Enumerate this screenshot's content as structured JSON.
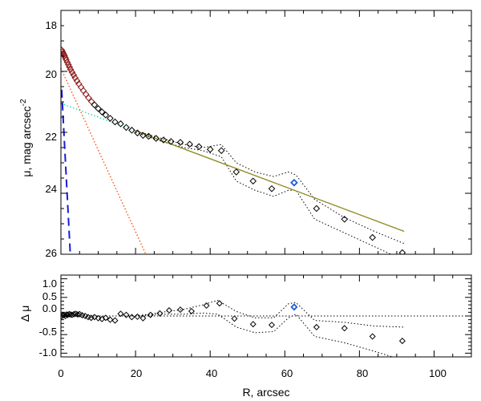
{
  "chart_data": {
    "type": "scatter",
    "xlabel": "R, arcsec",
    "xlim": [
      0,
      110
    ],
    "x_ticks": [
      "0",
      "20",
      "40",
      "60",
      "80",
      "100"
    ],
    "top_panel": {
      "ylabel_main": "μ, mag arcsec",
      "ylabel_sup": "-2",
      "ylim": [
        26,
        18
      ],
      "y_ticks": [
        "18",
        "20",
        "22",
        "24",
        "26"
      ],
      "points": [
        {
          "x": 0.2,
          "y": 19.3
        },
        {
          "x": 0.4,
          "y": 19.35
        },
        {
          "x": 0.6,
          "y": 19.4
        },
        {
          "x": 0.8,
          "y": 19.45
        },
        {
          "x": 1.0,
          "y": 19.5
        },
        {
          "x": 1.2,
          "y": 19.56
        },
        {
          "x": 1.4,
          "y": 19.62
        },
        {
          "x": 1.7,
          "y": 19.7
        },
        {
          "x": 2.0,
          "y": 19.78
        },
        {
          "x": 2.3,
          "y": 19.86
        },
        {
          "x": 2.6,
          "y": 19.94
        },
        {
          "x": 3.0,
          "y": 20.03
        },
        {
          "x": 3.4,
          "y": 20.12
        },
        {
          "x": 3.8,
          "y": 20.21
        },
        {
          "x": 4.3,
          "y": 20.31
        },
        {
          "x": 4.8,
          "y": 20.41
        },
        {
          "x": 5.4,
          "y": 20.52
        },
        {
          "x": 6.0,
          "y": 20.63
        },
        {
          "x": 6.7,
          "y": 20.75
        },
        {
          "x": 7.4,
          "y": 20.87
        },
        {
          "x": 8.2,
          "y": 20.99
        },
        {
          "x": 9.0,
          "y": 21.1
        },
        {
          "x": 10.0,
          "y": 21.22
        },
        {
          "x": 11.0,
          "y": 21.33
        },
        {
          "x": 12.0,
          "y": 21.43
        },
        {
          "x": 13.2,
          "y": 21.54
        },
        {
          "x": 14.5,
          "y": 21.66
        },
        {
          "x": 16.0,
          "y": 21.72
        },
        {
          "x": 17.5,
          "y": 21.84
        },
        {
          "x": 19.0,
          "y": 21.93
        },
        {
          "x": 20.5,
          "y": 22.02
        },
        {
          "x": 22.0,
          "y": 22.1
        },
        {
          "x": 23.5,
          "y": 22.13
        },
        {
          "x": 25.5,
          "y": 22.2
        },
        {
          "x": 27.5,
          "y": 22.25
        },
        {
          "x": 29.5,
          "y": 22.3
        },
        {
          "x": 32.0,
          "y": 22.33
        },
        {
          "x": 34.5,
          "y": 22.39
        },
        {
          "x": 37.0,
          "y": 22.47
        },
        {
          "x": 40.0,
          "y": 22.56
        },
        {
          "x": 43.0,
          "y": 22.6
        },
        {
          "x": 47.0,
          "y": 23.3
        },
        {
          "x": 51.5,
          "y": 23.6
        },
        {
          "x": 56.5,
          "y": 23.85
        },
        {
          "x": 62.5,
          "y": 23.65,
          "highlight": true
        },
        {
          "x": 68.5,
          "y": 24.5
        },
        {
          "x": 76.0,
          "y": 24.85
        },
        {
          "x": 83.5,
          "y": 25.45
        },
        {
          "x": 91.5,
          "y": 25.95
        }
      ],
      "fit_lines": [
        {
          "name": "outer disk fit",
          "style": "solid",
          "color": "#8b8b1e",
          "x": [
            20,
            92
          ],
          "y": [
            21.95,
            25.25
          ]
        },
        {
          "name": "disk extrapolation",
          "style": "dotted",
          "color": "#00e0a0",
          "x": [
            0,
            20
          ],
          "y": [
            21.05,
            21.95
          ]
        },
        {
          "name": "bulge component",
          "style": "dotted",
          "color": "#ff4500",
          "x": [
            0,
            23.5
          ],
          "y": [
            19.9,
            26.2
          ]
        },
        {
          "name": "nucleus component",
          "style": "dashed",
          "color": "#1a1ad6",
          "x": [
            0.2,
            2.6
          ],
          "y": [
            20.6,
            26.2
          ]
        }
      ],
      "envelope_upper": {
        "x": [
          20,
          27,
          33,
          38,
          43,
          47,
          52,
          57,
          61,
          63,
          68,
          76,
          84,
          92
        ],
        "y": [
          21.95,
          22.2,
          22.4,
          22.5,
          22.4,
          23.0,
          23.3,
          23.45,
          23.3,
          23.4,
          24.2,
          24.8,
          25.25,
          25.65
        ]
      },
      "envelope_lower": {
        "x": [
          20,
          27,
          33,
          38,
          43,
          47,
          52,
          57,
          61,
          63,
          68,
          76,
          84,
          92
        ],
        "y": [
          22.0,
          22.3,
          22.5,
          22.6,
          22.8,
          23.6,
          23.9,
          24.1,
          23.9,
          23.9,
          24.85,
          25.3,
          25.75,
          26.2
        ]
      }
    },
    "bottom_panel": {
      "ylabel": "Δ μ",
      "ylim": [
        -1.1,
        1.1
      ],
      "y_ticks": [
        "1.0",
        "0.5",
        "0.0",
        "-0.5",
        "-1.0"
      ],
      "points": [
        {
          "x": 0.3,
          "y": 0.0
        },
        {
          "x": 0.6,
          "y": 0.02
        },
        {
          "x": 0.9,
          "y": 0.03
        },
        {
          "x": 1.2,
          "y": 0.0
        },
        {
          "x": 1.5,
          "y": 0.04
        },
        {
          "x": 1.8,
          "y": 0.03
        },
        {
          "x": 2.2,
          "y": 0.05
        },
        {
          "x": 2.6,
          "y": 0.04
        },
        {
          "x": 3.0,
          "y": 0.03
        },
        {
          "x": 3.5,
          "y": 0.05
        },
        {
          "x": 4.0,
          "y": 0.06
        },
        {
          "x": 4.5,
          "y": 0.04
        },
        {
          "x": 5.0,
          "y": 0.05
        },
        {
          "x": 5.7,
          "y": 0.02
        },
        {
          "x": 6.5,
          "y": 0.0
        },
        {
          "x": 7.3,
          "y": -0.03
        },
        {
          "x": 8.1,
          "y": -0.05
        },
        {
          "x": 9.0,
          "y": -0.03
        },
        {
          "x": 10.0,
          "y": -0.06
        },
        {
          "x": 11.0,
          "y": -0.08
        },
        {
          "x": 12.0,
          "y": -0.05
        },
        {
          "x": 13.2,
          "y": -0.1
        },
        {
          "x": 14.5,
          "y": -0.12
        },
        {
          "x": 16.0,
          "y": 0.06
        },
        {
          "x": 17.5,
          "y": 0.03
        },
        {
          "x": 19.0,
          "y": -0.03
        },
        {
          "x": 20.5,
          "y": -0.02
        },
        {
          "x": 22.0,
          "y": -0.06
        },
        {
          "x": 24.0,
          "y": 0.03
        },
        {
          "x": 26.5,
          "y": 0.07
        },
        {
          "x": 29.0,
          "y": 0.15
        },
        {
          "x": 32.0,
          "y": 0.17
        },
        {
          "x": 35.0,
          "y": 0.13
        },
        {
          "x": 39.0,
          "y": 0.28
        },
        {
          "x": 42.5,
          "y": 0.34
        },
        {
          "x": 46.5,
          "y": -0.07
        },
        {
          "x": 51.5,
          "y": -0.22
        },
        {
          "x": 56.5,
          "y": -0.24
        },
        {
          "x": 62.5,
          "y": 0.24,
          "highlight": true
        },
        {
          "x": 68.5,
          "y": -0.3
        },
        {
          "x": 76.0,
          "y": -0.33
        },
        {
          "x": 83.5,
          "y": -0.55
        },
        {
          "x": 91.5,
          "y": -0.67
        }
      ],
      "zero_line": {
        "x": [
          0,
          110
        ],
        "y": [
          0.0,
          0.0
        ]
      },
      "envelope_upper": {
        "x": [
          20,
          27,
          33,
          38,
          42,
          47,
          52,
          57,
          61,
          63,
          68,
          76,
          84,
          92
        ],
        "y": [
          0.0,
          0.1,
          0.18,
          0.3,
          0.42,
          0.12,
          -0.05,
          -0.05,
          0.33,
          0.36,
          -0.12,
          -0.17,
          -0.27,
          -0.3
        ]
      },
      "envelope_lower": {
        "x": [
          20,
          27,
          33,
          38,
          42,
          47,
          52,
          57,
          61,
          63,
          68,
          76,
          84,
          92
        ],
        "y": [
          0.0,
          0.05,
          0.05,
          0.08,
          0.05,
          -0.3,
          -0.45,
          -0.42,
          -0.05,
          0.05,
          -0.55,
          -0.72,
          -0.95,
          -1.2
        ]
      }
    },
    "colors": {
      "marker": "#000000",
      "highlight_marker": "#1f5fd6",
      "inner_marker": "#8b1a1a"
    }
  }
}
